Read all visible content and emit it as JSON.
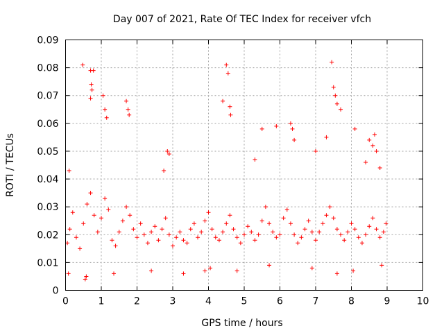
{
  "chart_data": {
    "type": "scatter",
    "title": "Day 007 of 2021, Rate Of TEC Index for receiver vfch",
    "xlabel": "GPS time / hours",
    "ylabel": "ROTI / TECUs",
    "xlim": [
      0,
      10
    ],
    "ylim": [
      0,
      0.09
    ],
    "x_ticks": [
      0,
      1,
      2,
      3,
      4,
      5,
      6,
      7,
      8,
      9,
      10
    ],
    "x_tick_labels": [
      "0",
      "1",
      "2",
      "3",
      "4",
      "5",
      "6",
      "7",
      "8",
      "9",
      "10"
    ],
    "y_ticks": [
      0,
      0.01,
      0.02,
      0.03,
      0.04,
      0.05,
      0.06,
      0.07,
      0.08,
      0.09
    ],
    "y_tick_labels": [
      "0",
      "0.01",
      "0.02",
      "0.03",
      "0.04",
      "0.05",
      "0.06",
      "0.07",
      "0.08",
      "0.09"
    ],
    "grid": true,
    "marker": "plus",
    "series_color": "#ff0000",
    "series": [
      {
        "name": "ROTI",
        "x": [
          0.05,
          0.12,
          0.2,
          0.3,
          0.4,
          0.5,
          0.6,
          0.7,
          0.8,
          0.9,
          1.0,
          1.1,
          1.2,
          1.3,
          1.4,
          1.5,
          1.6,
          1.7,
          1.8,
          1.9,
          2.0,
          2.1,
          2.2,
          2.3,
          2.4,
          2.5,
          2.6,
          2.7,
          2.8,
          2.9,
          3.0,
          3.1,
          3.2,
          3.3,
          3.4,
          3.5,
          3.6,
          3.7,
          3.8,
          3.9,
          4.0,
          4.1,
          4.2,
          4.3,
          4.4,
          4.5,
          4.6,
          4.7,
          4.8,
          4.9,
          5.0,
          5.1,
          5.2,
          5.3,
          5.4,
          5.5,
          5.6,
          5.7,
          5.8,
          5.9,
          6.0,
          6.1,
          6.2,
          6.3,
          6.4,
          6.5,
          6.6,
          6.7,
          6.8,
          6.9,
          7.0,
          7.1,
          7.2,
          7.3,
          7.4,
          7.5,
          7.6,
          7.7,
          7.8,
          7.9,
          8.0,
          8.1,
          8.2,
          8.3,
          8.4,
          8.5,
          8.6,
          8.7,
          8.8,
          8.9,
          8.97,
          0.48,
          0.7,
          0.72,
          0.74,
          0.78,
          0.7,
          1.05,
          1.1,
          1.15,
          1.7,
          1.75,
          1.78,
          2.75,
          2.85,
          2.9,
          4.4,
          4.5,
          4.55,
          4.6,
          4.62,
          5.3,
          5.5,
          5.9,
          6.3,
          6.35,
          6.4,
          7.0,
          7.3,
          7.45,
          7.5,
          7.55,
          7.6,
          7.7,
          8.1,
          8.4,
          8.5,
          8.6,
          8.65,
          8.7,
          8.8,
          0.08,
          0.1,
          0.55,
          0.58,
          1.35,
          2.4,
          3.3,
          3.9,
          4.05,
          4.8,
          5.7,
          6.9,
          7.6,
          8.05,
          8.85
        ],
        "y": [
          0.017,
          0.022,
          0.028,
          0.019,
          0.015,
          0.024,
          0.031,
          0.035,
          0.027,
          0.021,
          0.026,
          0.033,
          0.029,
          0.018,
          0.016,
          0.021,
          0.025,
          0.03,
          0.027,
          0.022,
          0.019,
          0.024,
          0.02,
          0.017,
          0.021,
          0.023,
          0.018,
          0.022,
          0.026,
          0.02,
          0.016,
          0.019,
          0.021,
          0.018,
          0.017,
          0.022,
          0.024,
          0.019,
          0.021,
          0.025,
          0.028,
          0.022,
          0.019,
          0.018,
          0.021,
          0.024,
          0.027,
          0.022,
          0.019,
          0.017,
          0.02,
          0.023,
          0.021,
          0.018,
          0.02,
          0.025,
          0.03,
          0.024,
          0.021,
          0.019,
          0.02,
          0.026,
          0.029,
          0.024,
          0.02,
          0.017,
          0.019,
          0.022,
          0.025,
          0.021,
          0.018,
          0.021,
          0.024,
          0.027,
          0.03,
          0.026,
          0.022,
          0.02,
          0.018,
          0.021,
          0.024,
          0.022,
          0.019,
          0.017,
          0.02,
          0.023,
          0.026,
          0.022,
          0.019,
          0.021,
          0.024,
          0.081,
          0.079,
          0.074,
          0.072,
          0.079,
          0.069,
          0.07,
          0.065,
          0.062,
          0.068,
          0.065,
          0.063,
          0.043,
          0.05,
          0.049,
          0.068,
          0.081,
          0.078,
          0.066,
          0.063,
          0.047,
          0.058,
          0.059,
          0.06,
          0.058,
          0.054,
          0.05,
          0.055,
          0.082,
          0.073,
          0.07,
          0.067,
          0.065,
          0.058,
          0.046,
          0.054,
          0.052,
          0.056,
          0.05,
          0.044,
          0.006,
          0.043,
          0.004,
          0.005,
          0.006,
          0.007,
          0.006,
          0.007,
          0.008,
          0.007,
          0.009,
          0.008,
          0.006,
          0.007,
          0.009
        ]
      }
    ]
  }
}
